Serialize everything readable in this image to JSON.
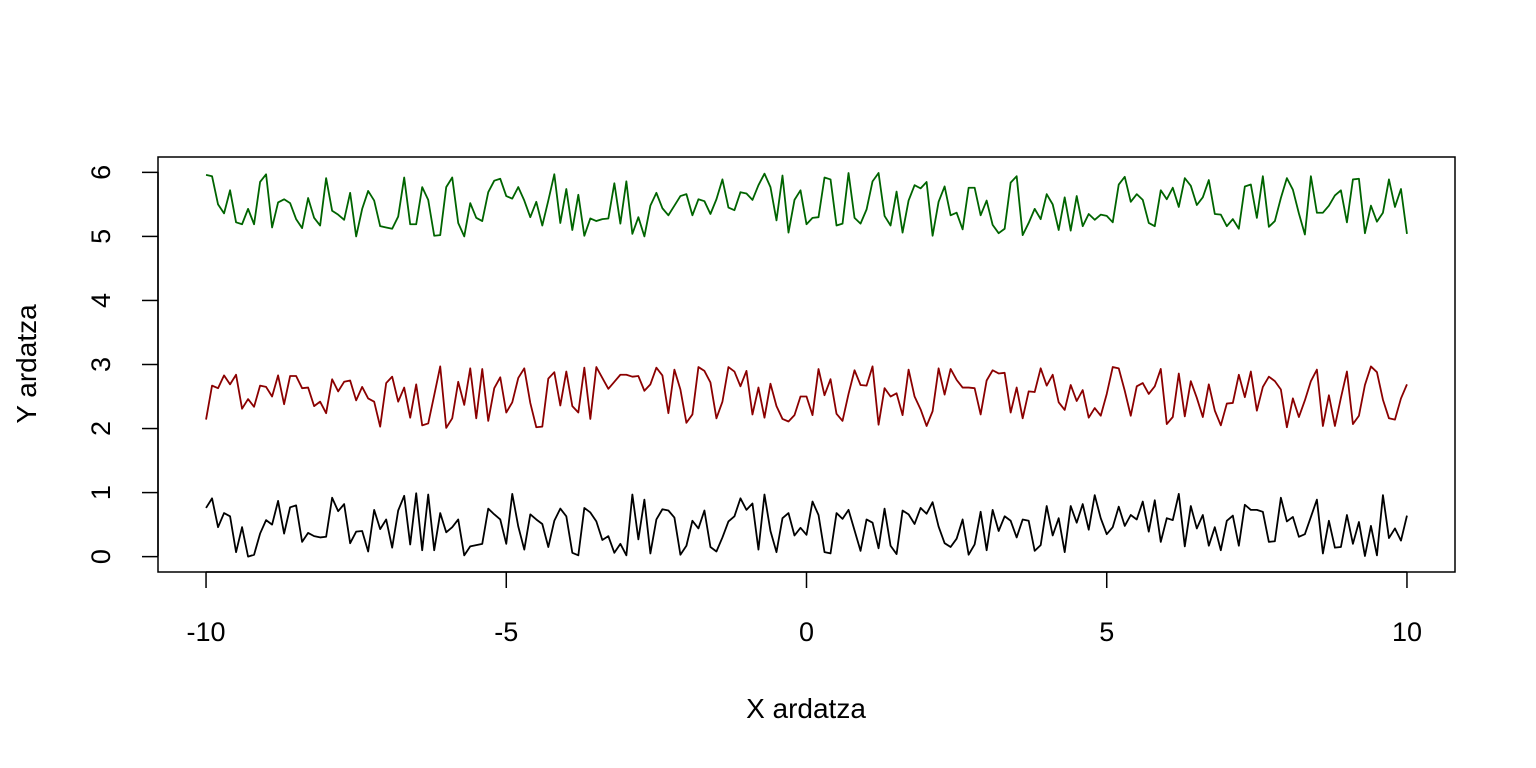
{
  "chart_data": {
    "type": "line",
    "xlabel": "X ardatza",
    "ylabel": "Y ardatza",
    "xlim": [
      -10.8,
      10.8
    ],
    "ylim": [
      -0.24,
      6.24
    ],
    "xticks": [
      -10,
      -5,
      0,
      5,
      10
    ],
    "yticks": [
      0,
      1,
      2,
      3,
      4,
      5,
      6
    ],
    "x_tick_labels": [
      "-10",
      "-5",
      "0",
      "5",
      "10"
    ],
    "y_tick_labels": [
      "0",
      "1",
      "2",
      "3",
      "4",
      "5",
      "6"
    ],
    "grid": false,
    "legend": "none",
    "x": [
      -10.0,
      -9.9,
      -9.8,
      -9.7,
      -9.6,
      -9.5,
      -9.4,
      -9.3,
      -9.2,
      -9.1,
      -9.0,
      -8.9,
      -8.8,
      -8.7,
      -8.6,
      -8.5,
      -8.4,
      -8.3,
      -8.2,
      -8.1,
      -8.0,
      -7.9,
      -7.8,
      -7.7,
      -7.6,
      -7.5,
      -7.4,
      -7.3,
      -7.2,
      -7.1,
      -7.0,
      -6.9,
      -6.8,
      -6.7,
      -6.6,
      -6.5,
      -6.4,
      -6.3,
      -6.2,
      -6.1,
      -6.0,
      -5.9,
      -5.8,
      -5.7,
      -5.6,
      -5.5,
      -5.4,
      -5.3,
      -5.2,
      -5.1,
      -5.0,
      -4.9,
      -4.8,
      -4.7,
      -4.6,
      -4.5,
      -4.4,
      -4.3,
      -4.2,
      -4.1,
      -4.0,
      -3.9,
      -3.8,
      -3.7,
      -3.6,
      -3.5,
      -3.4,
      -3.3,
      -3.2,
      -3.1,
      -3.0,
      -2.9,
      -2.8,
      -2.7,
      -2.6,
      -2.5,
      -2.4,
      -2.3,
      -2.2,
      -2.1,
      -2.0,
      -1.9,
      -1.8,
      -1.7,
      -1.6,
      -1.5,
      -1.4,
      -1.3,
      -1.2,
      -1.1,
      -1.0,
      -0.9,
      -0.8,
      -0.7,
      -0.6,
      -0.5,
      -0.4,
      -0.3,
      -0.2,
      -0.1,
      0.0,
      0.1,
      0.2,
      0.3,
      0.4,
      0.5,
      0.6,
      0.7,
      0.8,
      0.9,
      1.0,
      1.1,
      1.2,
      1.3,
      1.4,
      1.5,
      1.6,
      1.7,
      1.8,
      1.9,
      2.0,
      2.1,
      2.2,
      2.3,
      2.4,
      2.5,
      2.6,
      2.7,
      2.8,
      2.9,
      3.0,
      3.1,
      3.2,
      3.3,
      3.4,
      3.5,
      3.6,
      3.7,
      3.8,
      3.9,
      4.0,
      4.1,
      4.2,
      4.3,
      4.4,
      4.5,
      4.6,
      4.7,
      4.8,
      4.9,
      5.0,
      5.1,
      5.2,
      5.3,
      5.4,
      5.5,
      5.6,
      5.7,
      5.8,
      5.9,
      6.0,
      6.1,
      6.2,
      6.3,
      6.4,
      6.5,
      6.6,
      6.7,
      6.8,
      6.9,
      7.0,
      7.1,
      7.2,
      7.3,
      7.4,
      7.5,
      7.6,
      7.7,
      7.8,
      7.9,
      8.0,
      8.1,
      8.2,
      8.3,
      8.4,
      8.5,
      8.6,
      8.7,
      8.8,
      8.9,
      9.0,
      9.1,
      9.2,
      9.3,
      9.4,
      9.5,
      9.6,
      9.7,
      9.8,
      9.9,
      10.0
    ],
    "series": [
      {
        "color": "#000000",
        "values": [
          0.76,
          0.91,
          0.46,
          0.68,
          0.63,
          0.07,
          0.46,
          0.0,
          0.03,
          0.36,
          0.57,
          0.5,
          0.87,
          0.36,
          0.77,
          0.8,
          0.23,
          0.37,
          0.32,
          0.3,
          0.31,
          0.92,
          0.71,
          0.82,
          0.21,
          0.39,
          0.4,
          0.08,
          0.73,
          0.43,
          0.58,
          0.14,
          0.72,
          0.95,
          0.19,
          0.99,
          0.1,
          0.97,
          0.1,
          0.68,
          0.38,
          0.46,
          0.58,
          0.02,
          0.16,
          0.18,
          0.2,
          0.75,
          0.66,
          0.58,
          0.2,
          0.98,
          0.47,
          0.11,
          0.66,
          0.58,
          0.51,
          0.15,
          0.56,
          0.75,
          0.63,
          0.06,
          0.02,
          0.76,
          0.69,
          0.55,
          0.26,
          0.32,
          0.06,
          0.2,
          0.02,
          0.97,
          0.27,
          0.89,
          0.05,
          0.58,
          0.74,
          0.72,
          0.61,
          0.03,
          0.17,
          0.56,
          0.44,
          0.72,
          0.15,
          0.08,
          0.3,
          0.55,
          0.63,
          0.91,
          0.73,
          0.83,
          0.11,
          0.97,
          0.4,
          0.07,
          0.6,
          0.68,
          0.33,
          0.45,
          0.34,
          0.86,
          0.65,
          0.07,
          0.05,
          0.68,
          0.59,
          0.73,
          0.41,
          0.09,
          0.58,
          0.53,
          0.13,
          0.75,
          0.17,
          0.04,
          0.72,
          0.66,
          0.51,
          0.76,
          0.67,
          0.85,
          0.47,
          0.21,
          0.15,
          0.28,
          0.58,
          0.03,
          0.19,
          0.7,
          0.1,
          0.73,
          0.4,
          0.63,
          0.56,
          0.3,
          0.58,
          0.56,
          0.09,
          0.18,
          0.79,
          0.33,
          0.6,
          0.07,
          0.79,
          0.53,
          0.82,
          0.42,
          0.96,
          0.6,
          0.35,
          0.46,
          0.78,
          0.48,
          0.65,
          0.58,
          0.86,
          0.39,
          0.88,
          0.23,
          0.6,
          0.57,
          0.98,
          0.16,
          0.79,
          0.44,
          0.65,
          0.17,
          0.46,
          0.1,
          0.56,
          0.64,
          0.17,
          0.81,
          0.73,
          0.73,
          0.7,
          0.23,
          0.24,
          0.92,
          0.55,
          0.62,
          0.31,
          0.35,
          0.62,
          0.89,
          0.05,
          0.56,
          0.14,
          0.15,
          0.65,
          0.2,
          0.54,
          0.01,
          0.48,
          0.02,
          0.96,
          0.29,
          0.44,
          0.25,
          0.64
        ]
      },
      {
        "color": "#8b0000",
        "values": [
          2.14,
          2.67,
          2.63,
          2.83,
          2.69,
          2.84,
          2.31,
          2.46,
          2.34,
          2.67,
          2.65,
          2.5,
          2.83,
          2.38,
          2.82,
          2.82,
          2.63,
          2.64,
          2.35,
          2.42,
          2.24,
          2.77,
          2.58,
          2.73,
          2.75,
          2.44,
          2.65,
          2.47,
          2.42,
          2.03,
          2.71,
          2.81,
          2.42,
          2.64,
          2.17,
          2.69,
          2.05,
          2.08,
          2.52,
          2.97,
          2.01,
          2.16,
          2.73,
          2.37,
          2.94,
          2.16,
          2.93,
          2.12,
          2.63,
          2.8,
          2.25,
          2.41,
          2.79,
          2.94,
          2.4,
          2.02,
          2.03,
          2.78,
          2.88,
          2.36,
          2.89,
          2.35,
          2.25,
          2.95,
          2.15,
          2.96,
          2.79,
          2.62,
          2.73,
          2.84,
          2.84,
          2.81,
          2.82,
          2.59,
          2.69,
          2.95,
          2.83,
          2.24,
          2.92,
          2.61,
          2.09,
          2.22,
          2.96,
          2.9,
          2.72,
          2.16,
          2.42,
          2.96,
          2.89,
          2.66,
          2.9,
          2.22,
          2.64,
          2.17,
          2.7,
          2.35,
          2.15,
          2.11,
          2.21,
          2.5,
          2.5,
          2.21,
          2.93,
          2.52,
          2.77,
          2.23,
          2.12,
          2.54,
          2.91,
          2.68,
          2.67,
          2.97,
          2.06,
          2.63,
          2.5,
          2.55,
          2.21,
          2.92,
          2.5,
          2.3,
          2.04,
          2.27,
          2.94,
          2.53,
          2.93,
          2.76,
          2.64,
          2.64,
          2.63,
          2.22,
          2.75,
          2.91,
          2.86,
          2.87,
          2.25,
          2.64,
          2.16,
          2.58,
          2.57,
          2.94,
          2.67,
          2.84,
          2.41,
          2.29,
          2.68,
          2.43,
          2.6,
          2.17,
          2.32,
          2.2,
          2.54,
          2.96,
          2.94,
          2.59,
          2.2,
          2.66,
          2.71,
          2.54,
          2.66,
          2.93,
          2.07,
          2.18,
          2.86,
          2.19,
          2.74,
          2.48,
          2.18,
          2.69,
          2.28,
          2.05,
          2.39,
          2.4,
          2.84,
          2.49,
          2.89,
          2.28,
          2.65,
          2.81,
          2.74,
          2.61,
          2.02,
          2.47,
          2.18,
          2.44,
          2.74,
          2.92,
          2.04,
          2.52,
          2.04,
          2.48,
          2.89,
          2.07,
          2.2,
          2.68,
          2.97,
          2.88,
          2.45,
          2.16,
          2.14,
          2.47,
          2.69
        ]
      },
      {
        "color": "#006400",
        "values": [
          5.96,
          5.94,
          5.5,
          5.36,
          5.72,
          5.22,
          5.19,
          5.43,
          5.19,
          5.85,
          5.97,
          5.14,
          5.53,
          5.58,
          5.52,
          5.27,
          5.13,
          5.6,
          5.29,
          5.17,
          5.91,
          5.4,
          5.34,
          5.26,
          5.68,
          5.0,
          5.43,
          5.71,
          5.56,
          5.16,
          5.14,
          5.12,
          5.31,
          5.92,
          5.19,
          5.19,
          5.77,
          5.57,
          5.01,
          5.02,
          5.77,
          5.92,
          5.21,
          5.0,
          5.52,
          5.29,
          5.24,
          5.69,
          5.87,
          5.9,
          5.63,
          5.59,
          5.77,
          5.56,
          5.3,
          5.54,
          5.17,
          5.56,
          5.97,
          5.21,
          5.74,
          5.1,
          5.65,
          5.01,
          5.28,
          5.24,
          5.27,
          5.28,
          5.83,
          5.2,
          5.86,
          5.04,
          5.3,
          5.0,
          5.48,
          5.68,
          5.44,
          5.33,
          5.48,
          5.63,
          5.66,
          5.33,
          5.58,
          5.55,
          5.35,
          5.58,
          5.89,
          5.45,
          5.41,
          5.69,
          5.67,
          5.57,
          5.8,
          5.98,
          5.77,
          5.25,
          5.95,
          5.06,
          5.57,
          5.72,
          5.19,
          5.29,
          5.3,
          5.92,
          5.89,
          5.17,
          5.2,
          5.99,
          5.29,
          5.2,
          5.42,
          5.86,
          5.99,
          5.32,
          5.17,
          5.7,
          5.06,
          5.56,
          5.8,
          5.75,
          5.85,
          5.01,
          5.54,
          5.78,
          5.33,
          5.37,
          5.11,
          5.76,
          5.76,
          5.33,
          5.56,
          5.18,
          5.05,
          5.12,
          5.84,
          5.94,
          5.02,
          5.21,
          5.43,
          5.27,
          5.66,
          5.5,
          5.1,
          5.61,
          5.09,
          5.63,
          5.16,
          5.35,
          5.26,
          5.34,
          5.32,
          5.22,
          5.81,
          5.93,
          5.54,
          5.66,
          5.57,
          5.21,
          5.16,
          5.72,
          5.58,
          5.76,
          5.46,
          5.91,
          5.79,
          5.49,
          5.61,
          5.88,
          5.35,
          5.34,
          5.16,
          5.27,
          5.12,
          5.78,
          5.81,
          5.29,
          5.94,
          5.15,
          5.24,
          5.6,
          5.91,
          5.73,
          5.36,
          5.03,
          5.94,
          5.37,
          5.37,
          5.48,
          5.64,
          5.72,
          5.22,
          5.89,
          5.9,
          5.05,
          5.48,
          5.23,
          5.37,
          5.89,
          5.46,
          5.74,
          5.04
        ]
      }
    ]
  }
}
